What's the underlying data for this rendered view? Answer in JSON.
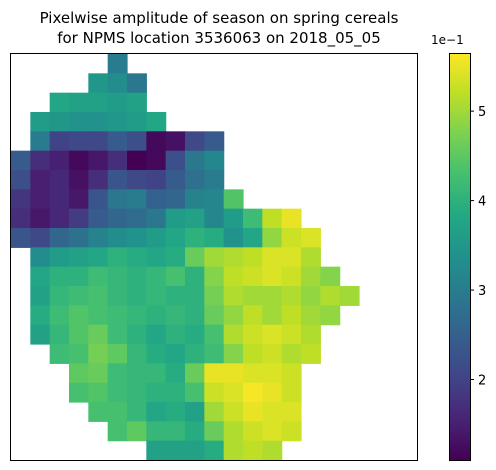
{
  "chart_data": {
    "type": "heatmap",
    "title_line1": "Pixelwise amplitude of season on spring cereals",
    "title_line2": "for NPMS location 3536063 on 2018_05_05",
    "xlabel": "",
    "ylabel": "",
    "colormap": "viridis",
    "colorbar": {
      "vmin": 1.1,
      "vmax": 5.65,
      "ticks": [
        2,
        3,
        4,
        5
      ],
      "tick_labels": [
        "2",
        "3",
        "4",
        "5"
      ],
      "offset_label": "1e−1"
    },
    "grid": false,
    "first_row_col_offset": 0,
    "cols": 21,
    "rows": 21,
    "values": [
      [
        null,
        null,
        null,
        null,
        null,
        3.0,
        null,
        null,
        null,
        null,
        null,
        null,
        null,
        null,
        null,
        null,
        null,
        null,
        null,
        null,
        null
      ],
      [
        null,
        null,
        null,
        null,
        3.5,
        3.3,
        2.9,
        null,
        null,
        null,
        null,
        null,
        null,
        null,
        null,
        null,
        null,
        null,
        null,
        null,
        null
      ],
      [
        null,
        null,
        3.8,
        3.7,
        3.7,
        3.6,
        3.7,
        null,
        null,
        null,
        null,
        null,
        null,
        null,
        null,
        null,
        null,
        null,
        null,
        null,
        null
      ],
      [
        null,
        3.6,
        3.5,
        3.4,
        3.4,
        3.5,
        3.6,
        3.8,
        null,
        null,
        null,
        null,
        null,
        null,
        null,
        null,
        null,
        null,
        null,
        null,
        null
      ],
      [
        null,
        3.0,
        2.0,
        2.1,
        2.1,
        2.4,
        2.2,
        1.2,
        1.3,
        2.1,
        2.4,
        null,
        null,
        null,
        null,
        null,
        null,
        null,
        null,
        null,
        null
      ],
      [
        2.4,
        1.7,
        1.5,
        1.2,
        1.4,
        1.7,
        1.1,
        1.2,
        2.2,
        2.9,
        3.2,
        null,
        null,
        null,
        null,
        null,
        null,
        null,
        null,
        null,
        null
      ],
      [
        2.2,
        1.5,
        1.6,
        1.3,
        1.7,
        2.3,
        2.1,
        2.0,
        2.4,
        2.8,
        3.0,
        null,
        null,
        null,
        null,
        null,
        null,
        null,
        null,
        null,
        null
      ],
      [
        1.8,
        1.5,
        1.6,
        1.4,
        2.3,
        2.9,
        3.0,
        2.5,
        2.6,
        3.1,
        3.2,
        4.4,
        null,
        null,
        null,
        null,
        null,
        null,
        null,
        null,
        null
      ],
      [
        1.7,
        1.4,
        1.6,
        1.9,
        2.4,
        2.6,
        2.7,
        2.9,
        3.6,
        3.7,
        3.2,
        3.6,
        4.2,
        5.2,
        5.5,
        null,
        null,
        null,
        null,
        null,
        null
      ],
      [
        2.3,
        2.1,
        2.6,
        2.8,
        3.1,
        3.3,
        3.4,
        3.6,
        3.8,
        4.0,
        3.9,
        3.4,
        3.8,
        4.9,
        5.3,
        5.4,
        null,
        null,
        null,
        null,
        null
      ],
      [
        null,
        3.3,
        3.6,
        3.7,
        3.8,
        4.0,
        3.9,
        3.8,
        3.9,
        4.6,
        5.0,
        5.1,
        5.2,
        5.4,
        5.4,
        5.1,
        null,
        null,
        null,
        null,
        null
      ],
      [
        null,
        3.8,
        4.0,
        4.0,
        4.2,
        4.1,
        4.0,
        4.1,
        4.3,
        4.0,
        4.8,
        5.2,
        5.3,
        5.4,
        5.3,
        5.0,
        4.8,
        null,
        null,
        null,
        null
      ],
      [
        null,
        3.7,
        4.1,
        4.2,
        4.3,
        4.1,
        4.0,
        4.1,
        4.0,
        4.0,
        4.7,
        5.1,
        5.0,
        5.0,
        5.1,
        4.9,
        5.1,
        5.0,
        null,
        null,
        null
      ],
      [
        null,
        3.9,
        4.2,
        4.4,
        4.3,
        4.2,
        4.1,
        4.0,
        4.1,
        4.0,
        4.6,
        4.9,
        5.2,
        5.0,
        5.2,
        5.0,
        4.9,
        null,
        null,
        null,
        null
      ],
      [
        null,
        3.7,
        4.1,
        4.4,
        4.6,
        4.2,
        4.0,
        3.8,
        4.0,
        3.9,
        4.3,
        5.1,
        5.3,
        5.4,
        5.3,
        5.1,
        null,
        null,
        null,
        null,
        null
      ],
      [
        null,
        null,
        4.2,
        4.3,
        4.7,
        4.5,
        4.1,
        3.9,
        3.8,
        4.0,
        4.2,
        4.8,
        5.2,
        5.3,
        5.1,
        5.2,
        null,
        null,
        null,
        null,
        null
      ],
      [
        null,
        null,
        null,
        4.5,
        4.6,
        4.2,
        4.1,
        4.1,
        3.9,
        4.6,
        5.5,
        5.5,
        5.4,
        5.4,
        5.3,
        null,
        null,
        null,
        null,
        null,
        null
      ],
      [
        null,
        null,
        null,
        4.3,
        4.4,
        4.2,
        4.1,
        4.0,
        4.0,
        4.3,
        5.3,
        5.4,
        5.6,
        5.5,
        5.3,
        null,
        null,
        null,
        null,
        null,
        null
      ],
      [
        null,
        null,
        null,
        null,
        4.3,
        4.3,
        4.1,
        3.8,
        3.9,
        3.7,
        5.0,
        5.3,
        5.5,
        5.4,
        5.4,
        null,
        null,
        null,
        null,
        null,
        null
      ],
      [
        null,
        null,
        null,
        null,
        null,
        4.3,
        4.5,
        4.1,
        4.1,
        3.9,
        4.6,
        5.1,
        5.3,
        5.4,
        5.3,
        null,
        null,
        null,
        null,
        null,
        null
      ],
      [
        null,
        null,
        null,
        null,
        null,
        null,
        null,
        3.7,
        3.7,
        3.7,
        3.9,
        5.1,
        5.2,
        5.1,
        null,
        null,
        null,
        null,
        null,
        null,
        null
      ]
    ]
  }
}
